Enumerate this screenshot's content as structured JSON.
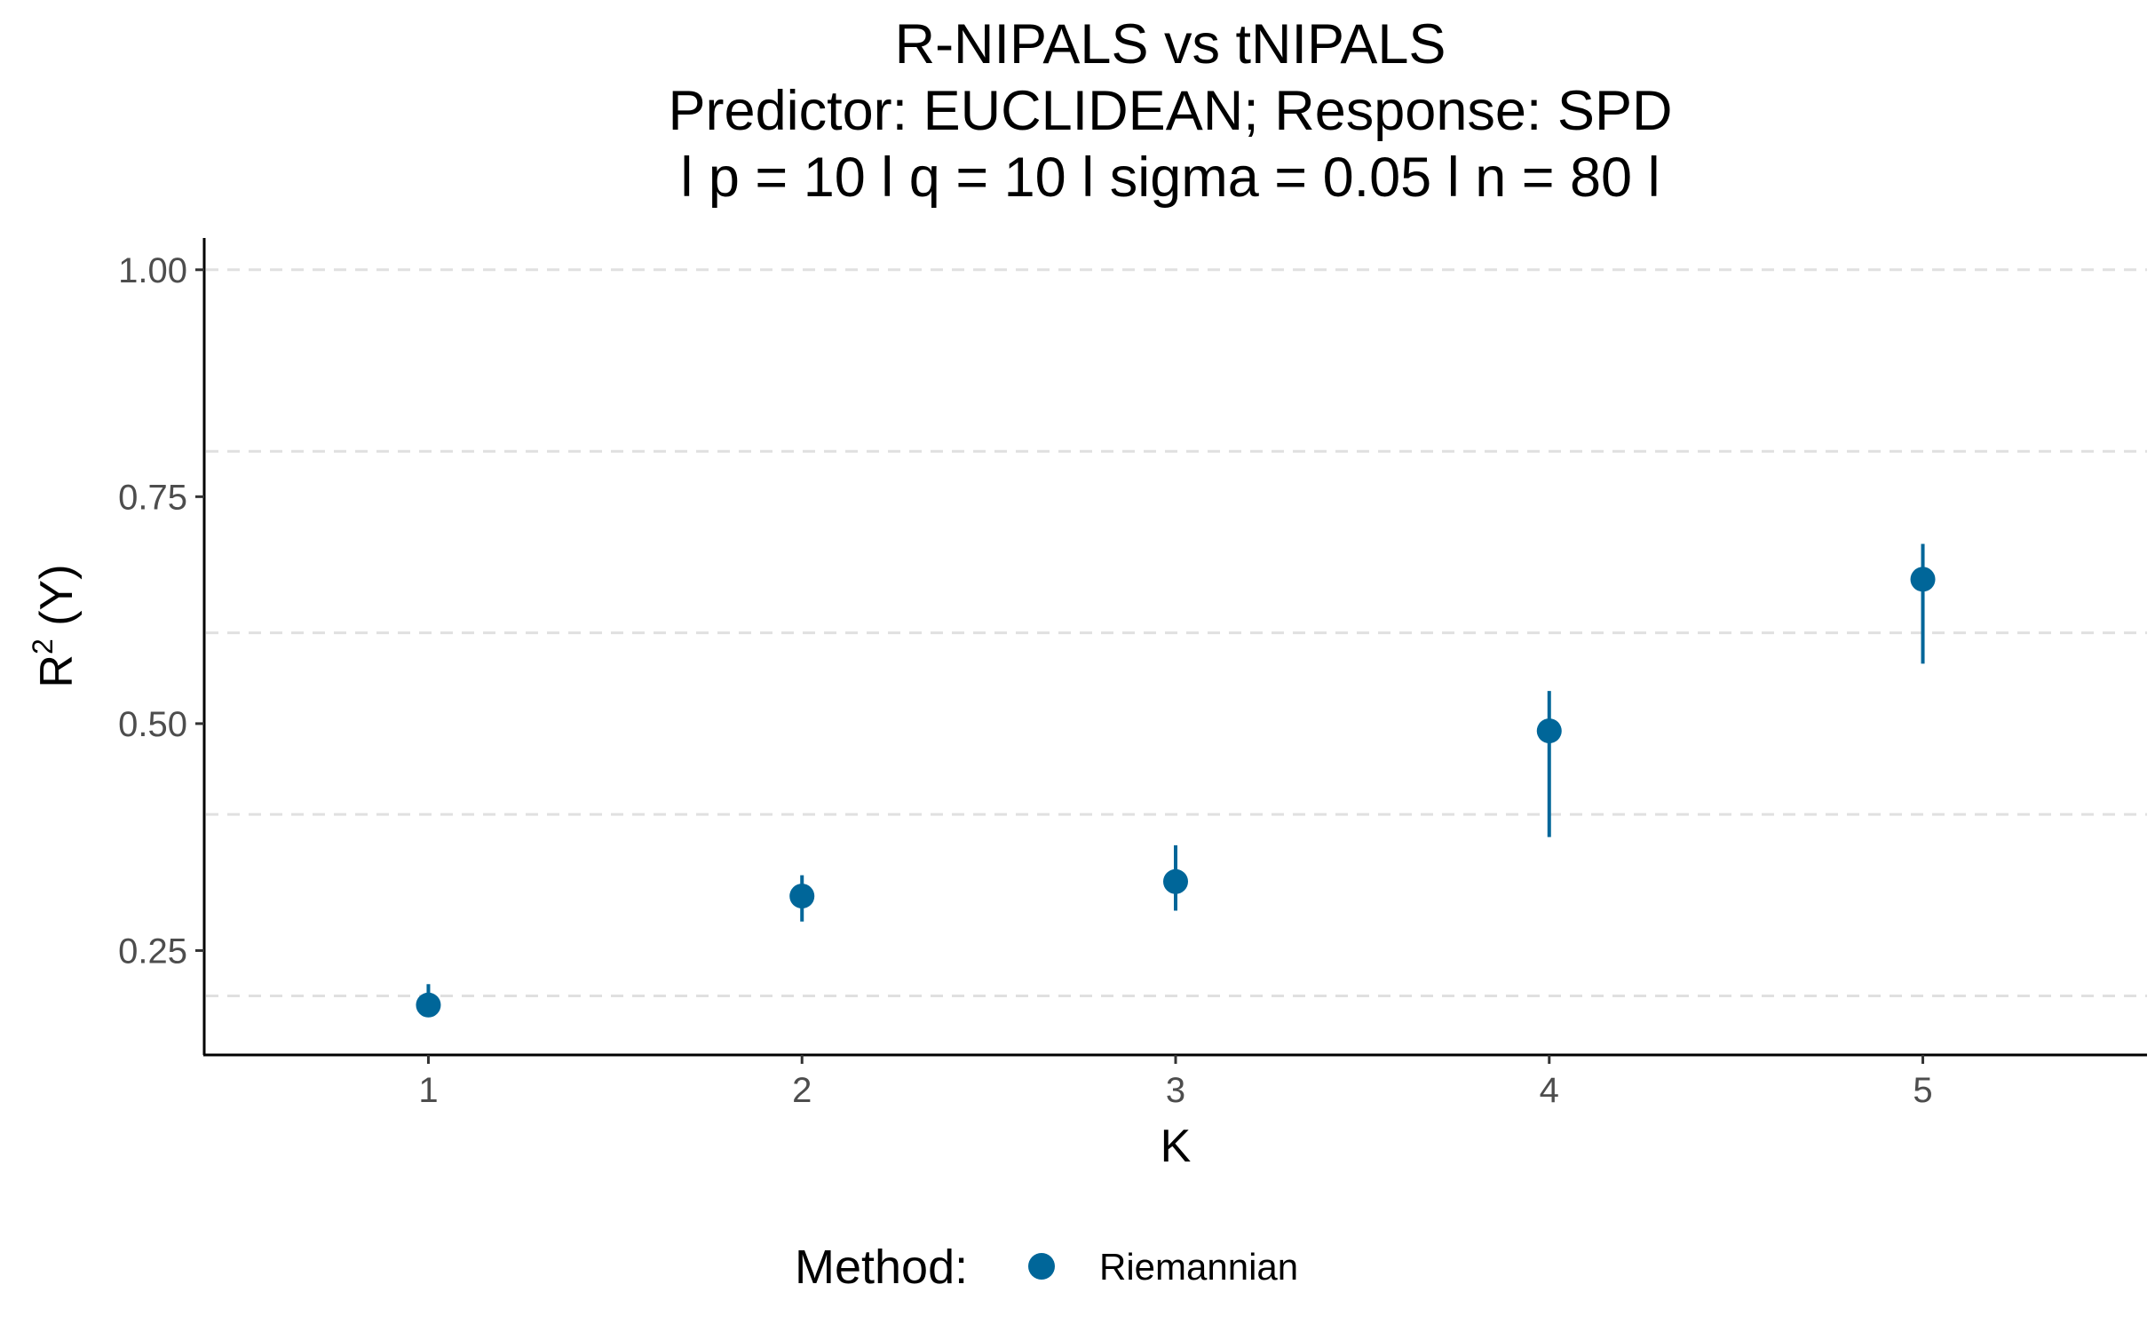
{
  "chart_data": {
    "type": "scatter",
    "title_lines": [
      "R-NIPALS vs tNIPALS",
      "Predictor: EUCLIDEAN; Response: SPD",
      "l p = 10 l q = 10 l sigma = 0.05 l n = 80 l"
    ],
    "xlabel": "K",
    "ylabel_main": "R",
    "ylabel_sup": "2",
    "ylabel_rest": " (Y)",
    "xlim": [
      0.4,
      5.6
    ],
    "ylim": [
      0.135,
      1.035
    ],
    "x_ticks": [
      {
        "value": 1,
        "label": "1"
      },
      {
        "value": 2,
        "label": "2"
      },
      {
        "value": 3,
        "label": "3"
      },
      {
        "value": 4,
        "label": "4"
      },
      {
        "value": 5,
        "label": "5"
      }
    ],
    "y_ticks": [
      {
        "value": 0.25,
        "label": "0.25"
      },
      {
        "value": 0.5,
        "label": "0.50"
      },
      {
        "value": 0.75,
        "label": "0.75"
      },
      {
        "value": 1.0,
        "label": "1.00"
      }
    ],
    "grid": {
      "major_x": false,
      "major_y": "dashed",
      "minor_y": "dashed"
    },
    "grid_lines_y": [
      0.2,
      0.4,
      0.6,
      0.8,
      1.0
    ],
    "series": [
      {
        "name": "Riemannian",
        "color": "#006699",
        "points": [
          {
            "x": 1,
            "y": 0.19,
            "ymin": 0.178,
            "ymax": 0.213
          },
          {
            "x": 2,
            "y": 0.31,
            "ymin": 0.282,
            "ymax": 0.333
          },
          {
            "x": 3,
            "y": 0.326,
            "ymin": 0.294,
            "ymax": 0.366
          },
          {
            "x": 4,
            "y": 0.492,
            "ymin": 0.375,
            "ymax": 0.536
          },
          {
            "x": 5,
            "y": 0.659,
            "ymin": 0.566,
            "ymax": 0.698
          }
        ]
      }
    ],
    "legend": {
      "position": "bottom",
      "title": "Method:",
      "entries": [
        "Riemannian"
      ]
    }
  }
}
